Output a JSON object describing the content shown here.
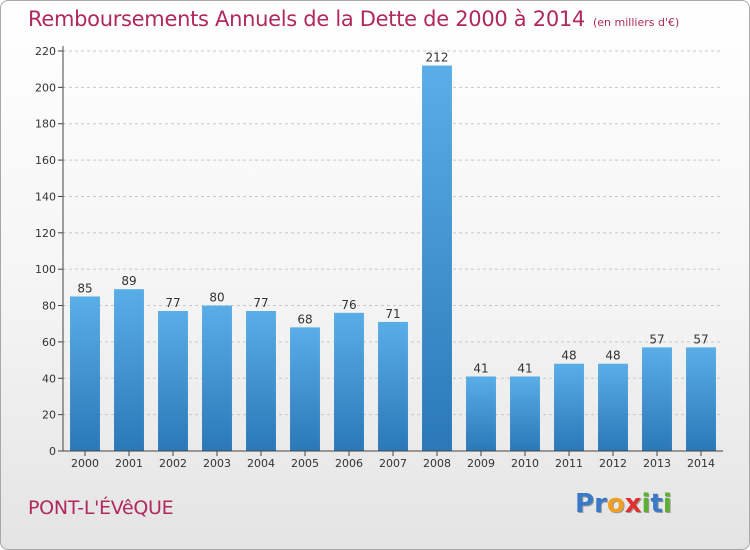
{
  "header": {
    "title": "Remboursements Annuels de la Dette de 2000 à 2014",
    "unit": "(en milliers d'€)"
  },
  "footer": {
    "place": "PONT-L'ÉVêQUE",
    "logo_text": "Proxiti"
  },
  "colors": {
    "title": "#b0285c",
    "bar_top": "#5aaee8",
    "bar_bottom": "#2a78b8",
    "grid": "#c8c8c8",
    "axis": "#444444"
  },
  "chart_data": {
    "type": "bar",
    "title": "Remboursements Annuels de la Dette de 2000 à 2014",
    "xlabel": "",
    "ylabel": "",
    "categories": [
      "2000",
      "2001",
      "2002",
      "2003",
      "2004",
      "2005",
      "2006",
      "2007",
      "2008",
      "2009",
      "2010",
      "2011",
      "2012",
      "2013",
      "2014"
    ],
    "values": [
      85,
      89,
      77,
      80,
      77,
      68,
      76,
      71,
      212,
      41,
      41,
      48,
      48,
      57,
      57
    ],
    "ylim": [
      0,
      220
    ],
    "yticks": [
      0,
      20,
      40,
      60,
      80,
      100,
      120,
      140,
      160,
      180,
      200,
      220
    ],
    "grid": true,
    "legend": "none"
  }
}
